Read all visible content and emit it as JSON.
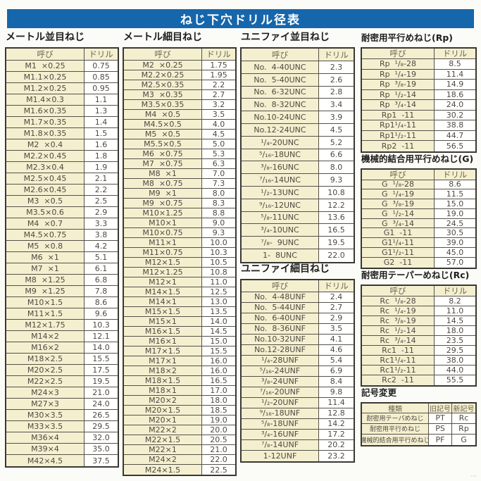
{
  "title": "ねじ下穴ドリル径表",
  "accent_color": "#1666ab",
  "cell_colors": {
    "name_bg": "#f4efcf",
    "value_bg": "#fffffe",
    "border": "#55524a"
  },
  "footer_mark": "--",
  "sections": {
    "metric_coarse": {
      "title": "メートル並目ねじ",
      "headers": [
        "呼び",
        "ドリル"
      ],
      "rows": [
        [
          "M1  ×0.25",
          "0.75"
        ],
        [
          "M1.1×0.25",
          "0.85"
        ],
        [
          "M1.2×0.25",
          "0.95"
        ],
        [
          "M1.4×0.3",
          "1.1"
        ],
        [
          "M1.6×0.35",
          "1.3"
        ],
        [
          "M1.7×0.35",
          "1.4"
        ],
        [
          "M1.8×0.35",
          "1.5"
        ],
        [
          "M2  ×0.4",
          "1.6"
        ],
        [
          "M2.2×0.45",
          "1.8"
        ],
        [
          "M2.3×0.4",
          "1.9"
        ],
        [
          "M2.5×0.45",
          "2.1"
        ],
        [
          "M2.6×0.45",
          "2.2"
        ],
        [
          "M3  ×0.5",
          "2.5"
        ],
        [
          "M3.5×0.6",
          "2.9"
        ],
        [
          "M4  ×0.7",
          "3.3"
        ],
        [
          "M4.5×0.75",
          "3.8"
        ],
        [
          "M5  ×0.8",
          "4.2"
        ],
        [
          "M6  ×1",
          "5.1"
        ],
        [
          "M7  ×1",
          "6.1"
        ],
        [
          "M8  ×1.25",
          "6.8"
        ],
        [
          "M9  ×1.25",
          "7.8"
        ],
        [
          "M10×1.5",
          "8.6"
        ],
        [
          "M11×1.5",
          "9.6"
        ],
        [
          "M12×1.75",
          "10.3"
        ],
        [
          "M14×2",
          "12.1"
        ],
        [
          "M16×2",
          "14.0"
        ],
        [
          "M18×2.5",
          "15.5"
        ],
        [
          "M20×2.5",
          "17.5"
        ],
        [
          "M22×2.5",
          "19.5"
        ],
        [
          "M24×3",
          "21.0"
        ],
        [
          "M27×3",
          "24.0"
        ],
        [
          "M30×3.5",
          "26.5"
        ],
        [
          "M33×3.5",
          "29.5"
        ],
        [
          "M36×4",
          "32.0"
        ],
        [
          "M39×4",
          "35.0"
        ],
        [
          "M42×4.5",
          "37.5"
        ]
      ]
    },
    "metric_fine": {
      "title": "メートル細目ねじ",
      "headers": [
        "呼び",
        "ドリル"
      ],
      "rows": [
        [
          "M2  ×0.25",
          "1.75"
        ],
        [
          "M2.2×0.25",
          "1.95"
        ],
        [
          "M2.5×0.35",
          "2.2"
        ],
        [
          "M3  ×0.35",
          "2.7"
        ],
        [
          "M3.5×0.35",
          "3.2"
        ],
        [
          "M4  ×0.5",
          "3.5"
        ],
        [
          "M4.5×0.5",
          "4.0"
        ],
        [
          "M5  ×0.5",
          "4.5"
        ],
        [
          "M5.5×0.5",
          "5.0"
        ],
        [
          "M6  ×0.75",
          "5.3"
        ],
        [
          "M7  ×0.75",
          "6.3"
        ],
        [
          "M8  ×1",
          "7.0"
        ],
        [
          "M8  ×0.75",
          "7.3"
        ],
        [
          "M9  ×1",
          "8.0"
        ],
        [
          "M9  ×0.75",
          "8.3"
        ],
        [
          "M10×1.25",
          "8.8"
        ],
        [
          "M10×1",
          "9.0"
        ],
        [
          "M10×0.75",
          "9.3"
        ],
        [
          "M11×1",
          "10.0"
        ],
        [
          "M11×0.75",
          "10.3"
        ],
        [
          "M12×1.5",
          "10.5"
        ],
        [
          "M12×1.25",
          "10.8"
        ],
        [
          "M12×1",
          "11.0"
        ],
        [
          "M14×1.5",
          "12.5"
        ],
        [
          "M14×1",
          "13.0"
        ],
        [
          "M15×1.5",
          "13.5"
        ],
        [
          "M15×1",
          "14.0"
        ],
        [
          "M16×1.5",
          "14.5"
        ],
        [
          "M16×1",
          "15.0"
        ],
        [
          "M17×1.5",
          "15.5"
        ],
        [
          "M17×1",
          "16.0"
        ],
        [
          "M18×2",
          "16.0"
        ],
        [
          "M18×1.5",
          "16.5"
        ],
        [
          "M18×1",
          "17.0"
        ],
        [
          "M20×2",
          "18.0"
        ],
        [
          "M20×1.5",
          "18.5"
        ],
        [
          "M20×1",
          "19.0"
        ],
        [
          "M22×2",
          "20.0"
        ],
        [
          "M22×1.5",
          "20.5"
        ],
        [
          "M22×1",
          "21.0"
        ],
        [
          "M24×2",
          "22.0"
        ],
        [
          "M24×1.5",
          "22.5"
        ]
      ]
    },
    "unc": {
      "title": "ユニファイ並目ねじ",
      "headers": [
        "呼び",
        "ドリル"
      ],
      "rows": [
        [
          "No.  4-40UNC",
          "2.3"
        ],
        [
          "No.  5-40UNC",
          "2.6"
        ],
        [
          "No.  6-32UNC",
          "2.8"
        ],
        [
          "No.  8-32UNC",
          "3.4"
        ],
        [
          "No.10-24UNC",
          "3.9"
        ],
        [
          "No.12-24UNC",
          "4.5"
        ],
        [
          "¹/₄-20UNC",
          "5.2"
        ],
        [
          "⁵/₁₆-18UNC",
          "6.6"
        ],
        [
          "³/₈-16UNC",
          "8.0"
        ],
        [
          "⁷/₁₆-14UNC",
          "9.3"
        ],
        [
          "¹/₂-13UNC",
          "10.8"
        ],
        [
          "⁹/₁₆-12UNC",
          "12.2"
        ],
        [
          "⁵/₈-11UNC",
          "13.6"
        ],
        [
          "³/₄-10UNC",
          "16.5"
        ],
        [
          "⁷/₈-  9UNC",
          "19.5"
        ],
        [
          "1-  8UNC",
          "22.0"
        ]
      ]
    },
    "unf": {
      "title": "ユニファイ細目ねじ",
      "headers": [
        "呼び",
        "ドリル"
      ],
      "rows": [
        [
          "No.  4-48UNF",
          "2.4"
        ],
        [
          "No.  5-44UNF",
          "2.7"
        ],
        [
          "No.  6-40UNF",
          "2.9"
        ],
        [
          "No.  8-36UNF",
          "3.5"
        ],
        [
          "No.10-32UNF",
          "4.1"
        ],
        [
          "No.12-28UNF",
          "4.6"
        ],
        [
          "¹/₄-28UNF",
          "5.4"
        ],
        [
          "⁵/₁₆-24UNF",
          "6.9"
        ],
        [
          "³/₈-24UNF",
          "8.4"
        ],
        [
          "⁷/₁₆-20UNF",
          "9.8"
        ],
        [
          "¹/₂-20UNF",
          "11.4"
        ],
        [
          "⁹/₁₆-18UNF",
          "12.8"
        ],
        [
          "⁵/₈-18UNF",
          "14.2"
        ],
        [
          "³/₄-16UNF",
          "17.2"
        ],
        [
          "⁷/₈-14UNF",
          "20.2"
        ],
        [
          "1-12UNF",
          "23.2"
        ]
      ]
    },
    "rp": {
      "title": "耐密用平行めねじ(Rp)",
      "headers": [
        "呼び",
        "ドリル"
      ],
      "rows": [
        [
          "Rp  ¹/₈-28",
          "8.5"
        ],
        [
          "Rp  ¹/₄-19",
          "11.4"
        ],
        [
          "Rp  ³/₈-19",
          "14.9"
        ],
        [
          "Rp  ¹/₂-14",
          "18.6"
        ],
        [
          "Rp  ³/₄-14",
          "24.0"
        ],
        [
          "Rp1  -11",
          "30.2"
        ],
        [
          "Rp1¹/₄-11",
          "38.8"
        ],
        [
          "Rp1¹/₂-11",
          "44.7"
        ],
        [
          "Rp2  -11",
          "56.5"
        ]
      ]
    },
    "g": {
      "title": "機械的結合用平行めねじ(G)",
      "headers": [
        "呼び",
        "ドリル"
      ],
      "rows": [
        [
          "G  ¹/₈-28",
          "8.6"
        ],
        [
          "G  ¹/₄-19",
          "11.5"
        ],
        [
          "G  ³/₈-19",
          "15.0"
        ],
        [
          "G  ¹/₂-14",
          "19.0"
        ],
        [
          "G  ³/₄-14",
          "24.5"
        ],
        [
          "G1  -11",
          "30.5"
        ],
        [
          "G1¹/₄-11",
          "39.0"
        ],
        [
          "G1¹/₂-11",
          "45.0"
        ],
        [
          "G2  -11",
          "57.0"
        ]
      ]
    },
    "rc": {
      "title": "耐密用テーパーめねじ(Rc)",
      "headers": [
        "呼び",
        "ドリル"
      ],
      "rows": [
        [
          "Rc  ¹/₈-28",
          "8.2"
        ],
        [
          "Rc  ¹/₄-19",
          "11.0"
        ],
        [
          "Rc  ³/₈-19",
          "14.5"
        ],
        [
          "Rc  ¹/₂-14",
          "18.0"
        ],
        [
          "Rc  ³/₄-14",
          "23.5"
        ],
        [
          "Rc1  -11",
          "29.5"
        ],
        [
          "Rc1¹/₄-11",
          "38.0"
        ],
        [
          "Rc1¹/₂-11",
          "44.0"
        ],
        [
          "Rc2  -11",
          "55.5"
        ]
      ]
    },
    "symbol_change": {
      "title": "記号変更",
      "headers": [
        "種類",
        "旧記号",
        "新記号"
      ],
      "rows": [
        [
          "耐密用テーパめねじ",
          "PT",
          "Rc"
        ],
        [
          "耐密用平行めねじ",
          "PS",
          "Rp"
        ],
        [
          "機械的結合用平行めねじ",
          "PF",
          "G"
        ]
      ]
    }
  }
}
